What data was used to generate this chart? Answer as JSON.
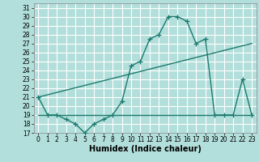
{
  "xlabel": "Humidex (Indice chaleur)",
  "background_color": "#b2dfdb",
  "grid_color": "#ffffff",
  "line_color": "#1a7a6e",
  "xlim": [
    -0.5,
    23.5
  ],
  "ylim": [
    17,
    31.5
  ],
  "xticks": [
    0,
    1,
    2,
    3,
    4,
    5,
    6,
    7,
    8,
    9,
    10,
    11,
    12,
    13,
    14,
    15,
    16,
    17,
    18,
    19,
    20,
    21,
    22,
    23
  ],
  "yticks": [
    17,
    18,
    19,
    20,
    21,
    22,
    23,
    24,
    25,
    26,
    27,
    28,
    29,
    30,
    31
  ],
  "curve1_x": [
    0,
    1,
    2,
    3,
    4,
    5,
    6,
    7,
    8,
    9,
    10,
    11,
    12,
    13,
    14,
    15,
    16,
    17,
    18,
    19,
    20,
    21,
    22,
    23
  ],
  "curve1_y": [
    21,
    19,
    19,
    18.5,
    18,
    17,
    18,
    18.5,
    19,
    20.5,
    24.5,
    25,
    27.5,
    28,
    30,
    30,
    29.5,
    27,
    27.5,
    19,
    19,
    19,
    23,
    19
  ],
  "curve2_x": [
    0,
    10,
    11,
    12,
    13,
    14,
    15,
    16,
    17,
    18,
    19,
    20,
    21,
    22,
    23
  ],
  "curve2_y": [
    19,
    19,
    19,
    19,
    19,
    19,
    19,
    19,
    19,
    19,
    19,
    19,
    19,
    19,
    19
  ],
  "curve3_x": [
    0,
    23
  ],
  "curve3_y": [
    21,
    27
  ],
  "marker": "P",
  "markersize": 3.5,
  "linewidth": 1.0,
  "tick_fontsize": 5.5,
  "xlabel_fontsize": 7
}
